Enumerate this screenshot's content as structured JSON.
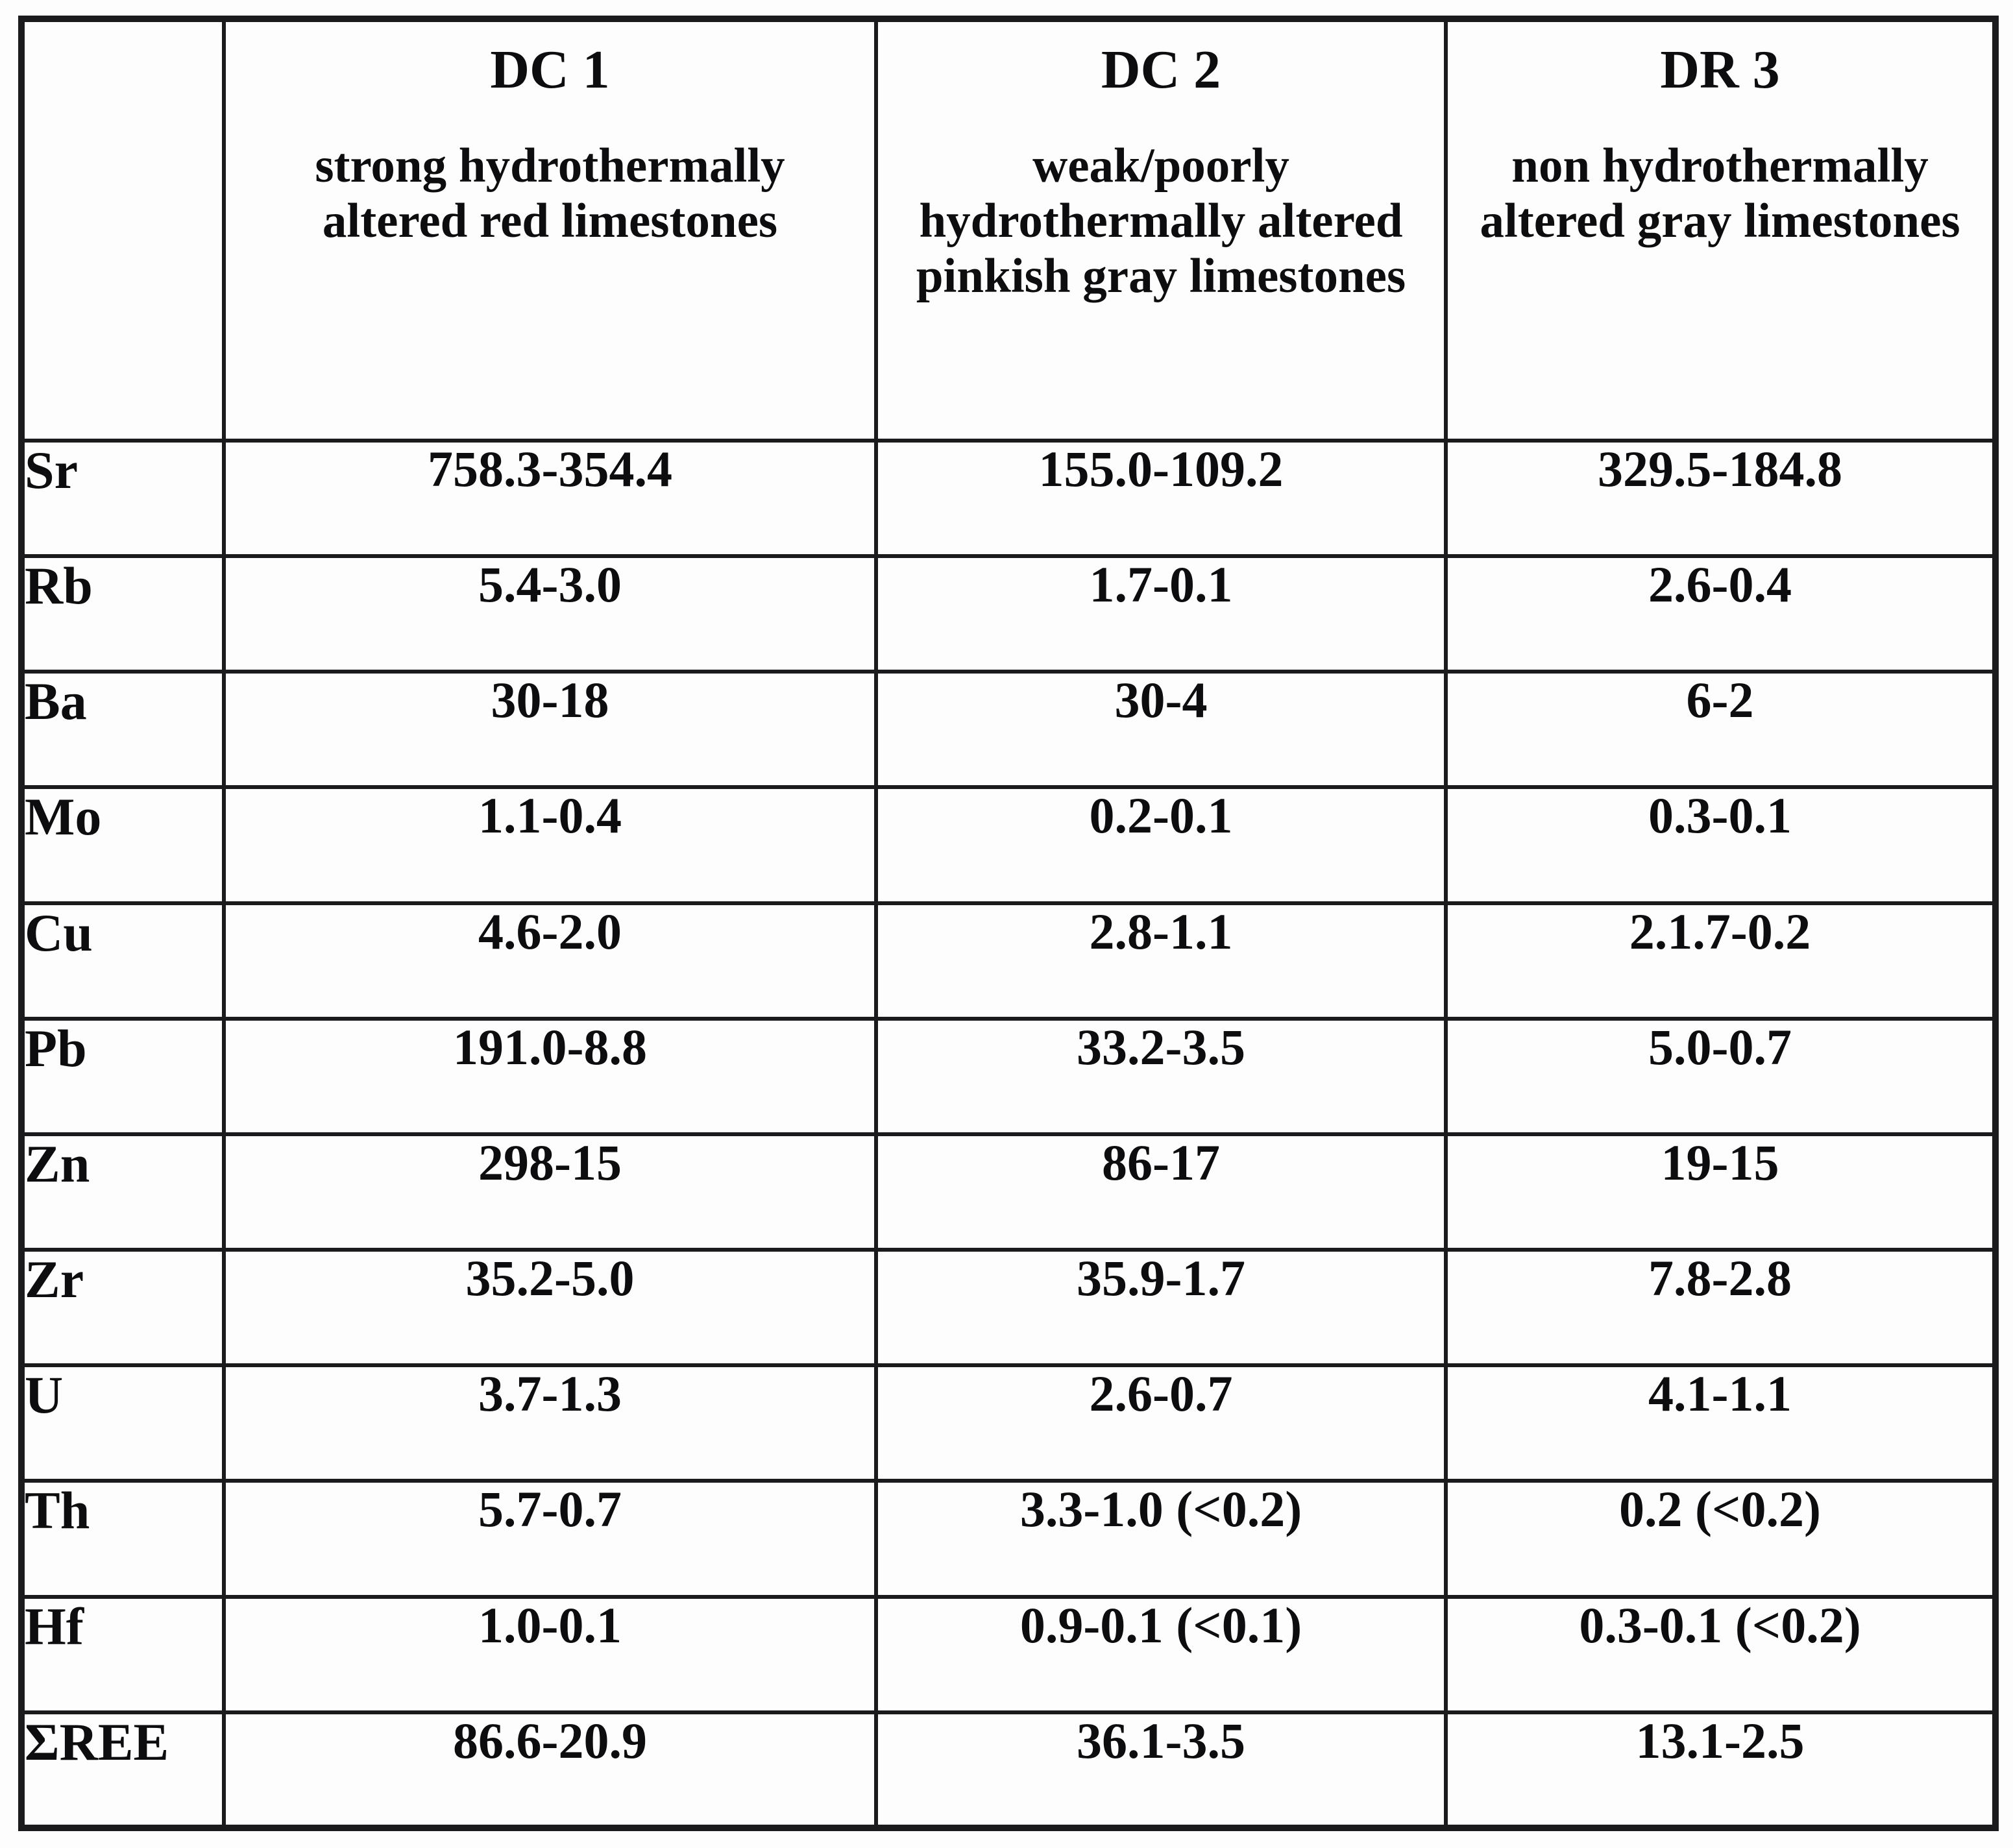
{
  "table": {
    "corner_label": "",
    "columns": [
      {
        "id": "DC 1",
        "description": "strong hydrothermally altered red limestones"
      },
      {
        "id": "DC 2",
        "description": "weak/poorly hydrothermally altered pinkish gray limestones"
      },
      {
        "id": "DR 3",
        "description": "non hydrothermally altered gray limestones"
      }
    ],
    "rows": [
      {
        "element": "Sr",
        "values": [
          "758.3-354.4",
          "155.0-109.2",
          "329.5-184.8"
        ]
      },
      {
        "element": "Rb",
        "values": [
          "5.4-3.0",
          "1.7-0.1",
          "2.6-0.4"
        ]
      },
      {
        "element": "Ba",
        "values": [
          "30-18",
          "30-4",
          "6-2"
        ]
      },
      {
        "element": "Mo",
        "values": [
          "1.1-0.4",
          "0.2-0.1",
          "0.3-0.1"
        ]
      },
      {
        "element": "Cu",
        "values": [
          "4.6-2.0",
          "2.8-1.1",
          "2.1.7-0.2"
        ]
      },
      {
        "element": "Pb",
        "values": [
          "191.0-8.8",
          "33.2-3.5",
          "5.0-0.7"
        ]
      },
      {
        "element": "Zn",
        "values": [
          "298-15",
          "86-17",
          "19-15"
        ]
      },
      {
        "element": "Zr",
        "values": [
          "35.2-5.0",
          "35.9-1.7",
          "7.8-2.8"
        ]
      },
      {
        "element": "U",
        "values": [
          "3.7-1.3",
          "2.6-0.7",
          "4.1-1.1"
        ]
      },
      {
        "element": "Th",
        "values": [
          "5.7-0.7",
          "3.3-1.0 (<0.2)",
          "0.2 (<0.2)"
        ]
      },
      {
        "element": "Hf",
        "values": [
          "1.0-0.1",
          "0.9-0.1 (<0.1)",
          "0.3-0.1 (<0.2)"
        ]
      },
      {
        "element": "ΣREE",
        "values": [
          "86.6-20.9",
          "36.1-3.5",
          "13.1-2.5"
        ]
      }
    ]
  }
}
